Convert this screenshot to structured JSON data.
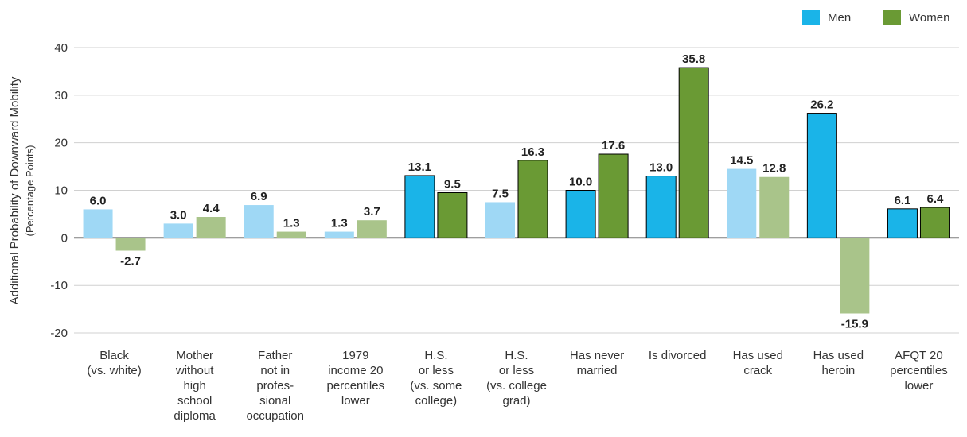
{
  "chart_data": {
    "type": "bar",
    "ylabel": "Additional Probability of Downward Mobility",
    "ylabel_sub": "(Percentage Points)",
    "categories": [
      [
        "Black",
        "(vs. white)"
      ],
      [
        "Mother",
        "without",
        "high",
        "school",
        "diploma"
      ],
      [
        "Father",
        "not in",
        "profes-",
        "sional",
        "occupation"
      ],
      [
        "1979",
        "income 20",
        "percentiles",
        "lower"
      ],
      [
        "H.S.",
        "or less",
        "(vs. some",
        "college)"
      ],
      [
        "H.S.",
        "or less",
        "(vs. college",
        "grad)"
      ],
      [
        "Has never",
        "married"
      ],
      [
        "Is divorced"
      ],
      [
        "Has used",
        "crack"
      ],
      [
        "Has used",
        "heroin"
      ],
      [
        "AFQT 20",
        "percentiles",
        "lower"
      ]
    ],
    "series": [
      {
        "name": "Men",
        "color": "#1ab4e8",
        "colors": [
          "#9fd8f5",
          "#9fd8f5",
          "#9fd8f5",
          "#9fd8f5",
          "#1ab4e8",
          "#9fd8f5",
          "#1ab4e8",
          "#1ab4e8",
          "#9fd8f5",
          "#1ab4e8",
          "#1ab4e8"
        ],
        "values": [
          6.0,
          3.0,
          6.9,
          1.3,
          13.1,
          7.5,
          10.0,
          13.0,
          14.5,
          26.2,
          6.1
        ],
        "value_labels": [
          "6.0",
          "3.0",
          "6.9",
          "1.3",
          "13.1",
          "7.5",
          "10.0",
          "13.0",
          "14.5",
          "26.2",
          "6.1"
        ]
      },
      {
        "name": "Women",
        "color": "#6a9a34",
        "colors": [
          "#a9c48a",
          "#a9c48a",
          "#a9c48a",
          "#a9c48a",
          "#6a9a34",
          "#6a9a34",
          "#6a9a34",
          "#6a9a34",
          "#a9c48a",
          "#a9c48a",
          "#6a9a34"
        ],
        "values": [
          -2.7,
          4.4,
          1.3,
          3.7,
          9.5,
          16.3,
          17.6,
          35.8,
          12.8,
          -15.9,
          6.4
        ],
        "value_labels": [
          "-2.7",
          "4.4",
          "1.3",
          "3.7",
          "9.5",
          "16.3",
          "17.6",
          "35.8",
          "12.8",
          "-15.9",
          "6.4"
        ]
      }
    ],
    "ylim": [
      -22,
      42
    ],
    "yticks": [
      -20,
      -10,
      0,
      10,
      20,
      30,
      40
    ],
    "grid": true,
    "legend": "top-right"
  }
}
